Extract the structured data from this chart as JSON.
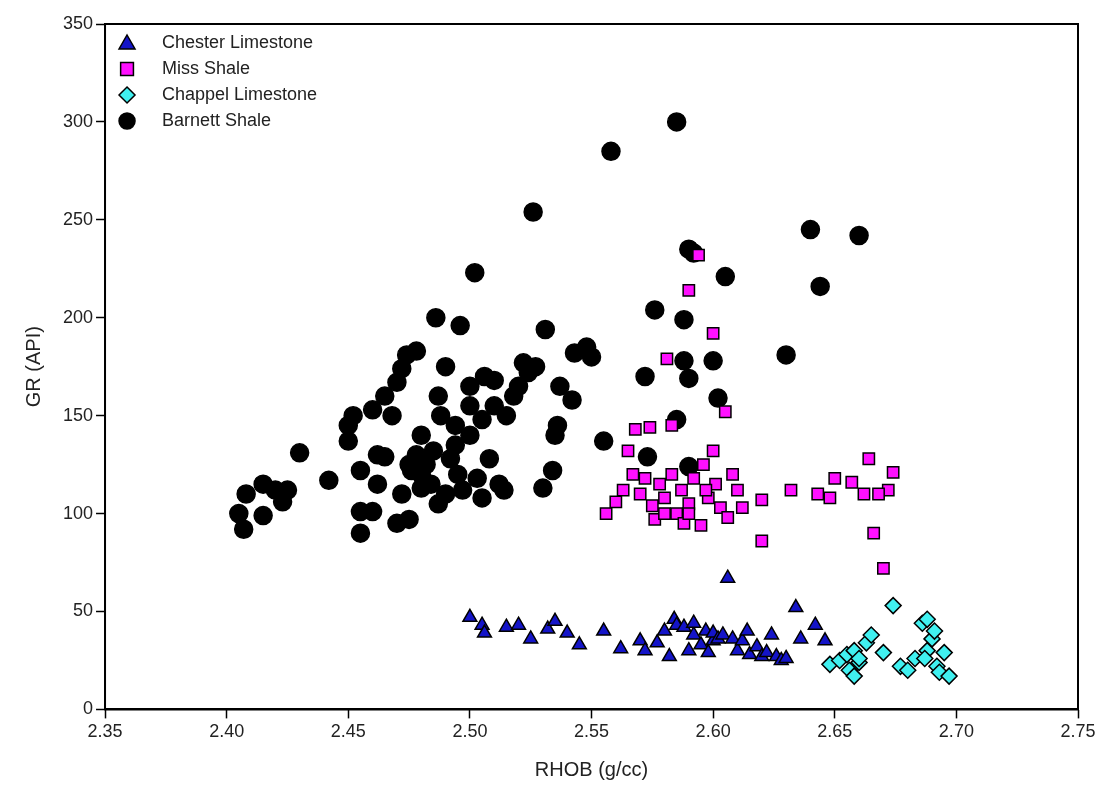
{
  "chart_data": {
    "type": "scatter",
    "xlabel": "RHOB (g/cc)",
    "ylabel": "GR (API)",
    "xlim": [
      2.35,
      2.75
    ],
    "xticks": [
      2.35,
      {
        "value": 2.4,
        "label": "2.40"
      },
      2.45,
      {
        "value": 2.5,
        "label": "2.50"
      },
      2.55,
      {
        "value": 2.6,
        "label": "2.60"
      },
      2.65,
      {
        "value": 2.7,
        "label": "2.70"
      },
      2.75
    ],
    "ylim": [
      0,
      350
    ],
    "yticks": [
      0,
      50,
      100,
      150,
      200,
      250,
      300,
      350
    ],
    "grid": false,
    "legend": "top left",
    "series": [
      {
        "name": "Chester Limestone",
        "color": "#1414c8",
        "marker": "triangle",
        "x": [
          2.5,
          2.505,
          2.506,
          2.515,
          2.52,
          2.525,
          2.532,
          2.535,
          2.54,
          2.545,
          2.555,
          2.562,
          2.57,
          2.572,
          2.577,
          2.58,
          2.582,
          2.584,
          2.585,
          2.588,
          2.59,
          2.592,
          2.595,
          2.597,
          2.6,
          2.6,
          2.602,
          2.604,
          2.606,
          2.608,
          2.61,
          2.612,
          2.614,
          2.615,
          2.618,
          2.62,
          2.622,
          2.624,
          2.626,
          2.628,
          2.63,
          2.634,
          2.636,
          2.642,
          2.646,
          2.592,
          2.598
        ],
        "values": [
          47,
          43,
          39,
          42,
          43,
          36,
          41,
          45,
          39,
          33,
          40,
          31,
          35,
          30,
          34,
          40,
          27,
          46,
          43,
          42,
          30,
          38,
          33,
          40,
          35,
          39,
          36,
          38,
          67,
          36,
          30,
          35,
          40,
          28,
          32,
          27,
          29,
          38,
          27,
          25,
          26,
          52,
          36,
          43,
          35,
          44,
          29
        ]
      },
      {
        "name": "Miss Shale",
        "color": "#ff10ff",
        "marker": "square",
        "x": [
          2.556,
          2.56,
          2.563,
          2.565,
          2.567,
          2.568,
          2.57,
          2.572,
          2.574,
          2.575,
          2.576,
          2.578,
          2.58,
          2.581,
          2.583,
          2.583,
          2.585,
          2.587,
          2.588,
          2.59,
          2.59,
          2.592,
          2.594,
          2.595,
          2.596,
          2.598,
          2.6,
          2.6,
          2.601,
          2.603,
          2.605,
          2.606,
          2.608,
          2.61,
          2.612,
          2.62,
          2.62,
          2.632,
          2.643,
          2.648,
          2.65,
          2.657,
          2.662,
          2.664,
          2.666,
          2.67,
          2.672,
          2.674,
          2.668,
          2.58,
          2.59,
          2.597
        ],
        "values": [
          100,
          106,
          112,
          132,
          120,
          143,
          110,
          118,
          144,
          104,
          97,
          115,
          108,
          179,
          145,
          120,
          100,
          112,
          95,
          214,
          105,
          118,
          232,
          94,
          125,
          108,
          192,
          132,
          115,
          103,
          152,
          98,
          120,
          112,
          103,
          107,
          86,
          112,
          110,
          108,
          118,
          116,
          110,
          128,
          90,
          72,
          112,
          121,
          110,
          100,
          100,
          112
        ]
      },
      {
        "name": "Chappel Limestone",
        "color": "#40f0f0",
        "marker": "diamond",
        "x": [
          2.648,
          2.652,
          2.655,
          2.656,
          2.658,
          2.658,
          2.66,
          2.66,
          2.663,
          2.665,
          2.67,
          2.674,
          2.677,
          2.68,
          2.683,
          2.686,
          2.688,
          2.688,
          2.69,
          2.691,
          2.692,
          2.693,
          2.695,
          2.697,
          2.687
        ],
        "values": [
          23,
          25,
          28,
          20,
          30,
          17,
          24,
          26,
          34,
          38,
          29,
          53,
          22,
          20,
          26,
          44,
          46,
          30,
          36,
          40,
          22,
          19,
          29,
          17,
          26
        ]
      },
      {
        "name": "Barnett Shale",
        "color": "#000000",
        "marker": "circle",
        "x": [
          2.405,
          2.407,
          2.408,
          2.415,
          2.415,
          2.42,
          2.423,
          2.425,
          2.43,
          2.442,
          2.45,
          2.45,
          2.452,
          2.455,
          2.455,
          2.455,
          2.46,
          2.46,
          2.462,
          2.465,
          2.465,
          2.468,
          2.47,
          2.47,
          2.472,
          2.472,
          2.474,
          2.475,
          2.476,
          2.478,
          2.478,
          2.48,
          2.48,
          2.482,
          2.484,
          2.485,
          2.486,
          2.487,
          2.488,
          2.49,
          2.49,
          2.492,
          2.494,
          2.495,
          2.496,
          2.497,
          2.5,
          2.5,
          2.5,
          2.502,
          2.503,
          2.505,
          2.505,
          2.506,
          2.508,
          2.51,
          2.51,
          2.512,
          2.514,
          2.515,
          2.518,
          2.52,
          2.522,
          2.524,
          2.526,
          2.527,
          2.53,
          2.531,
          2.534,
          2.535,
          2.536,
          2.537,
          2.542,
          2.543,
          2.548,
          2.55,
          2.555,
          2.558,
          2.572,
          2.573,
          2.576,
          2.585,
          2.585,
          2.588,
          2.588,
          2.59,
          2.59,
          2.59,
          2.592,
          2.6,
          2.602,
          2.605,
          2.63,
          2.64,
          2.644,
          2.66,
          2.475,
          2.48,
          2.462,
          2.487,
          2.494
        ],
        "values": [
          100,
          92,
          110,
          115,
          99,
          112,
          106,
          112,
          131,
          117,
          145,
          137,
          150,
          101,
          90,
          122,
          153,
          101,
          115,
          129,
          160,
          150,
          95,
          167,
          174,
          110,
          181,
          97,
          122,
          183,
          130,
          113,
          140,
          125,
          115,
          132,
          200,
          160,
          150,
          110,
          175,
          128,
          145,
          120,
          196,
          112,
          165,
          140,
          155,
          223,
          118,
          108,
          148,
          170,
          128,
          155,
          168,
          115,
          112,
          150,
          160,
          165,
          177,
          172,
          254,
          175,
          113,
          194,
          122,
          140,
          145,
          165,
          158,
          182,
          185,
          180,
          137,
          285,
          170,
          129,
          204,
          300,
          148,
          199,
          178,
          169,
          235,
          124,
          233,
          178,
          159,
          221,
          181,
          245,
          216,
          242,
          125,
          120,
          130,
          105,
          135
        ]
      }
    ]
  }
}
